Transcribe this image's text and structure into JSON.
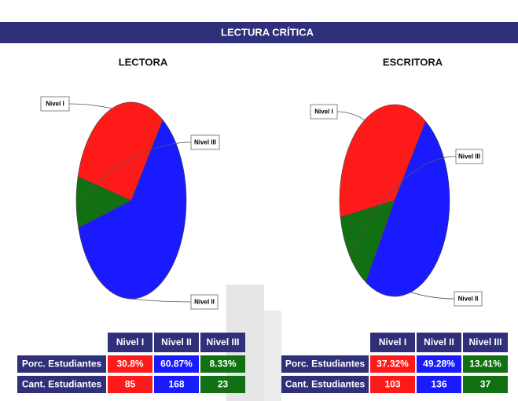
{
  "header": {
    "title": "LECTURA CRÍTICA"
  },
  "chart_data": [
    {
      "type": "pie",
      "title": "LECTORA",
      "categories": [
        "Nivel I",
        "Nivel II",
        "Nivel III"
      ],
      "values": [
        30.8,
        60.87,
        8.33
      ],
      "colors": [
        "#ff1a1a",
        "#1a1aff",
        "#117011"
      ]
    },
    {
      "type": "pie",
      "title": "ESCRITORA",
      "categories": [
        "Nivel I",
        "Nivel II",
        "Nivel III"
      ],
      "values": [
        37.32,
        49.28,
        13.41
      ],
      "colors": [
        "#ff1a1a",
        "#1a1aff",
        "#117011"
      ]
    }
  ],
  "tables": [
    {
      "columns": [
        "Nivel I",
        "Nivel II",
        "Nivel III"
      ],
      "rows": [
        {
          "label": "Porc. Estudiantes",
          "cells": [
            "30.8%",
            "60.87%",
            "8.33%"
          ]
        },
        {
          "label": "Cant. Estudiantes",
          "cells": [
            "85",
            "168",
            "23"
          ]
        }
      ]
    },
    {
      "columns": [
        "Nivel I",
        "Nivel II",
        "Nivel III"
      ],
      "rows": [
        {
          "label": "Porc. Estudiantes",
          "cells": [
            "37.32%",
            "49.28%",
            "13.41%"
          ]
        },
        {
          "label": "Cant. Estudiantes",
          "cells": [
            "103",
            "136",
            "37"
          ]
        }
      ]
    }
  ]
}
